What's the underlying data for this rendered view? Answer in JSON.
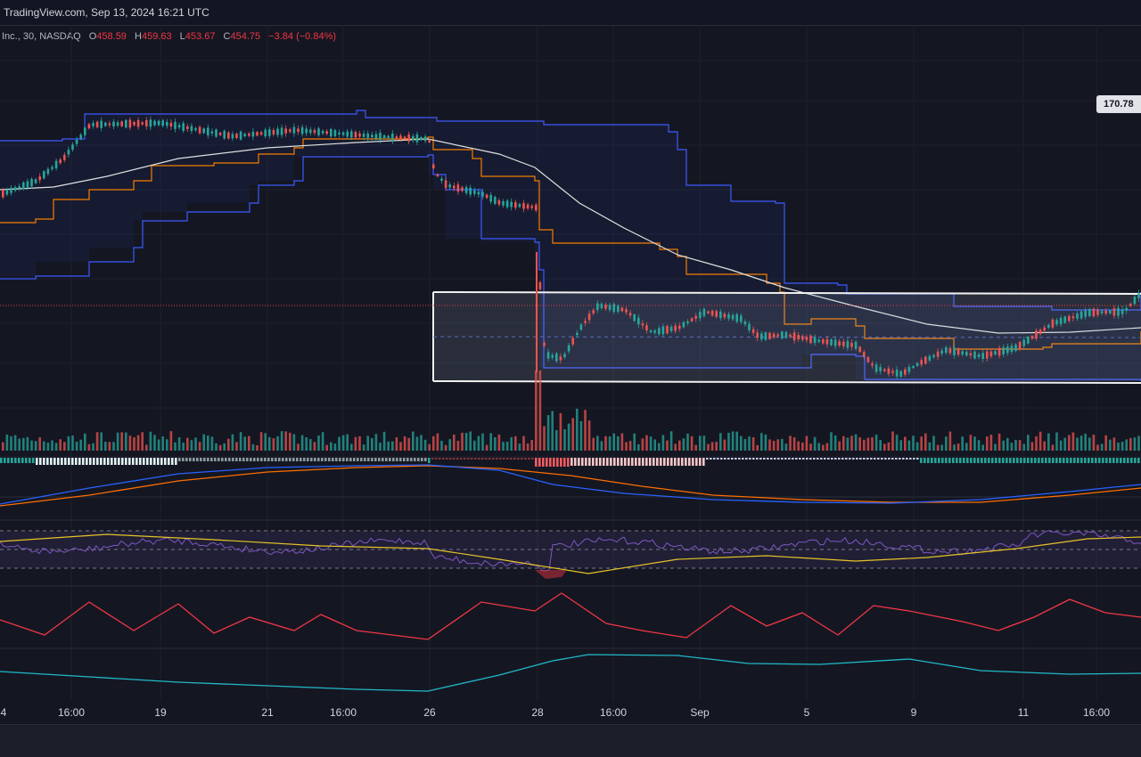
{
  "header": {
    "source": "TradingView.com, Sep 13, 2024 16:21 UTC"
  },
  "legend": {
    "symbol": "Inc., 30, NASDAQ",
    "o_label": "O",
    "o": "458.59",
    "h_label": "H",
    "h": "459.63",
    "l_label": "L",
    "l": "453.67",
    "c_label": "C",
    "c": "454.75",
    "change": "−3.84 (−0.84%)"
  },
  "price_badge": "170.78",
  "chart_data": {
    "type": "line",
    "title": "",
    "xlabel": "",
    "ylabel": "",
    "x_ticks": [
      "4",
      "16:00",
      "19",
      "21",
      "16:00",
      "26",
      "28",
      "16:00",
      "Sep",
      "5",
      "9",
      "11",
      "16:00"
    ],
    "colors": {
      "background": "#141722",
      "up": "#26a69a",
      "down": "#ef5350",
      "channel_band": "#3d5afe",
      "channel_mid": "#f57c00",
      "moving_average": "#e0e0e0",
      "rsi": "#7e57c2",
      "rsi_signal": "#e6c229",
      "oscillator_1": "#f23645",
      "oscillator_2": "#22b8c8",
      "macd_line": "#2962ff",
      "signal_line": "#ff6d00"
    },
    "panels": [
      "price",
      "volume",
      "histogram",
      "macd",
      "rsi",
      "oscillator_1",
      "oscillator_2"
    ],
    "grid": true
  }
}
